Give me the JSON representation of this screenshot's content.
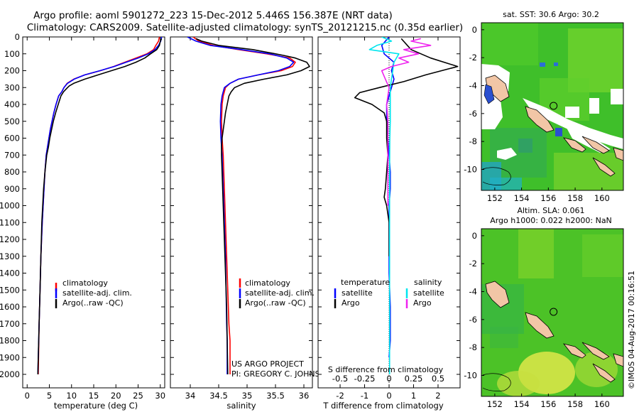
{
  "header": {
    "line1": "Argo profile: aoml 5901272_223 15-Dec-2012 5.446S 156.387E (NRT data)",
    "line2": "Climatology: CARS2009. Satellite-adjusted climatology: synTS_20121215.nc (0.35d earlier)"
  },
  "credit": {
    "project": "US ARGO PROJECT",
    "pi": "PI: GREGORY C. JOHNSON"
  },
  "timestamp": "©IMOS 04-Aug-2017 00:16:51",
  "colors": {
    "climatology": "#ff0000",
    "satellite": "#0000ff",
    "argo": "#000000",
    "sat_salinity": "#00e5ee",
    "argo_salinity": "#ee22ee",
    "land": "#f2c6a6"
  },
  "chart_data": [
    {
      "id": "temperature",
      "type": "line",
      "xlabel": "temperature (deg C)",
      "ylabel": "",
      "xlim": [
        -1,
        31
      ],
      "ylim": [
        2080,
        0
      ],
      "xticks": [
        0,
        5,
        10,
        15,
        20,
        25,
        30
      ],
      "xtick_labels": [
        "0",
        "5",
        "10",
        "15",
        "20",
        "25",
        "30"
      ],
      "yticks": [
        0,
        100,
        200,
        300,
        400,
        500,
        600,
        700,
        800,
        900,
        1000,
        1100,
        1200,
        1300,
        1400,
        1500,
        1600,
        1700,
        1800,
        1900,
        2000
      ],
      "ytick_labels": [
        "0",
        "100",
        "200",
        "300",
        "400",
        "500",
        "600",
        "700",
        "800",
        "900",
        "1000",
        "1100",
        "1200",
        "1300",
        "1400",
        "1500",
        "1600",
        "1700",
        "1800",
        "1900",
        "2000"
      ],
      "legend": [
        "climatology",
        "satellite-adj. clim.",
        "Argo(..raw -QC)"
      ],
      "series": [
        {
          "name": "climatology",
          "color": "#ff0000",
          "x": [
            29.8,
            29.6,
            29.0,
            28.5,
            27.0,
            24.5,
            22.0,
            19.5,
            16.5,
            13.0,
            10.5,
            9.0,
            8.3,
            7.8,
            7.1,
            6.5,
            6.0,
            5.6,
            5.2,
            4.9,
            4.6,
            4.3,
            4.0,
            3.8,
            3.4,
            3.1,
            2.9,
            2.7,
            2.5
          ],
          "y": [
            0,
            25,
            50,
            75,
            100,
            125,
            150,
            175,
            200,
            225,
            250,
            275,
            300,
            325,
            350,
            400,
            450,
            500,
            550,
            600,
            650,
            700,
            800,
            900,
            1100,
            1300,
            1500,
            1700,
            2000
          ]
        },
        {
          "name": "satellite-adj. clim.",
          "color": "#0000ff",
          "x": [
            30.3,
            30.1,
            29.6,
            28.8,
            27.3,
            25.0,
            22.3,
            19.6,
            16.4,
            13.0,
            10.6,
            9.1,
            8.3,
            7.8,
            7.1,
            6.5,
            6.0,
            5.6,
            5.2,
            4.9,
            4.6,
            4.3,
            4.0,
            3.8,
            3.4,
            3.1,
            2.9,
            2.7,
            2.4
          ],
          "y": [
            0,
            25,
            50,
            75,
            100,
            125,
            150,
            175,
            200,
            225,
            250,
            275,
            300,
            325,
            350,
            400,
            450,
            500,
            550,
            600,
            650,
            700,
            800,
            900,
            1100,
            1300,
            1500,
            1700,
            2000
          ]
        },
        {
          "name": "Argo(..raw -QC)",
          "color": "#000000",
          "x": [
            30.3,
            30.0,
            29.8,
            29.2,
            27.8,
            26.5,
            24.5,
            22.0,
            19.0,
            16.0,
            13.0,
            10.5,
            9.5,
            9.1,
            8.2,
            7.6,
            7.0,
            6.4,
            5.9,
            5.5,
            5.1,
            4.8,
            4.4,
            4.0,
            3.7,
            3.3,
            3.1,
            2.9,
            2.7,
            2.4
          ],
          "y": [
            10,
            25,
            50,
            75,
            100,
            125,
            150,
            175,
            200,
            225,
            250,
            275,
            290,
            300,
            325,
            350,
            400,
            450,
            500,
            550,
            600,
            650,
            700,
            800,
            900,
            1100,
            1300,
            1500,
            1700,
            2000
          ]
        }
      ]
    },
    {
      "id": "salinity",
      "type": "line",
      "xlabel": "salinity",
      "ylabel": "",
      "xlim": [
        33.65,
        36.15
      ],
      "ylim": [
        2080,
        0
      ],
      "xticks": [
        34,
        34.5,
        35,
        35.5,
        36
      ],
      "xtick_labels": [
        "34",
        "34.5",
        "35",
        "35.5",
        "36"
      ],
      "legend": [
        "climatology",
        "satellite-adj. clim.",
        "Argo(..raw -QC)"
      ],
      "series": [
        {
          "name": "climatology",
          "color": "#ff0000",
          "x": [
            34.05,
            34.15,
            34.4,
            34.85,
            35.35,
            35.75,
            35.85,
            35.8,
            35.6,
            35.2,
            34.85,
            34.7,
            34.62,
            34.58,
            34.56,
            34.55,
            34.56,
            34.58,
            34.6,
            34.62,
            34.64,
            34.66,
            34.68,
            34.7,
            34.7
          ],
          "y": [
            0,
            25,
            50,
            75,
            100,
            125,
            150,
            175,
            200,
            225,
            250,
            275,
            300,
            350,
            400,
            500,
            600,
            700,
            900,
            1100,
            1300,
            1500,
            1700,
            1800,
            2000
          ]
        },
        {
          "name": "satellite-adj. clim.",
          "color": "#0000ff",
          "x": [
            33.95,
            34.1,
            34.35,
            34.9,
            35.4,
            35.7,
            35.82,
            35.75,
            35.55,
            35.2,
            34.85,
            34.7,
            34.6,
            34.56,
            34.54,
            34.53,
            34.54,
            34.56,
            34.58,
            34.6,
            34.62,
            34.63,
            34.64,
            34.65,
            34.65
          ],
          "y": [
            0,
            25,
            50,
            75,
            100,
            125,
            150,
            175,
            200,
            225,
            250,
            275,
            300,
            350,
            400,
            500,
            600,
            700,
            900,
            1100,
            1300,
            1500,
            1700,
            1800,
            2000
          ]
        },
        {
          "name": "Argo(..raw -QC)",
          "color": "#000000",
          "x": [
            34.1,
            34.2,
            34.5,
            35.1,
            35.5,
            35.65,
            35.85,
            36.05,
            36.1,
            35.95,
            35.7,
            35.3,
            34.95,
            34.78,
            34.72,
            34.68,
            34.65,
            34.62,
            34.6,
            34.58,
            34.56,
            34.55,
            34.55,
            34.56,
            34.58,
            34.6,
            34.62,
            34.64,
            34.66
          ],
          "y": [
            10,
            25,
            50,
            75,
            100,
            110,
            125,
            150,
            175,
            200,
            225,
            250,
            275,
            300,
            325,
            350,
            400,
            450,
            500,
            550,
            600,
            650,
            700,
            800,
            1000,
            1200,
            1400,
            1600,
            2000
          ]
        }
      ]
    },
    {
      "id": "difference",
      "type": "line",
      "xlabel": "T difference from climatology",
      "xlabel2": "S difference from climatology",
      "xlim": [
        -2.9,
        2.9
      ],
      "ylim": [
        2080,
        0
      ],
      "xticks": [
        -2,
        -1,
        0,
        1,
        2
      ],
      "xtick_labels": [
        "-2",
        "-1",
        "0",
        "1",
        "2"
      ],
      "xticks2": [
        -2,
        -1,
        0,
        1,
        2
      ],
      "xtick_labels2": [
        "-0.5",
        "-0.25",
        "0",
        "0.25",
        "0.5"
      ],
      "legend_temperature": "temperature",
      "legend_salinity": "salinity",
      "legend": [
        "satellite",
        "Argo",
        "satellite",
        "Argo"
      ],
      "series": [
        {
          "name": "temperature satellite",
          "color": "#0000ff",
          "x": [
            0.0,
            -0.3,
            -0.2,
            0.2,
            0.1,
            0.2,
            0.1,
            0.0,
            -0.1,
            -0.1,
            -0.05,
            0.0,
            0.05,
            0.05,
            0.0,
            0.0,
            0.0,
            0.05,
            0.05,
            0.0
          ],
          "y": [
            0,
            50,
            100,
            150,
            200,
            250,
            300,
            350,
            400,
            500,
            600,
            700,
            800,
            900,
            1000,
            1200,
            1400,
            1600,
            1800,
            1900
          ]
        },
        {
          "name": "temperature Argo",
          "color": "#000000",
          "x": [
            0.5,
            0.9,
            1.7,
            2.8,
            1.5,
            0.6,
            -0.4,
            -1.2,
            -1.4,
            -0.7,
            -0.2,
            -0.1,
            -0.1,
            -0.05,
            -0.1,
            -0.15,
            -0.2,
            -0.1,
            -0.05,
            0.0,
            0.0
          ],
          "y": [
            10,
            75,
            125,
            175,
            225,
            265,
            300,
            330,
            360,
            400,
            450,
            500,
            600,
            700,
            800,
            900,
            950,
            1000,
            1050,
            1100,
            1300
          ]
        },
        {
          "name": "salinity satellite",
          "color": "#00e5ee",
          "x": [
            -0.3,
            0.1,
            -0.5,
            -0.8,
            0.4,
            0.2,
            0.15,
            0.1,
            0.05,
            0.05,
            0.05,
            0.03,
            0.02,
            0.02,
            0.02,
            0.02,
            0.02,
            0.02,
            0.02,
            0.02
          ],
          "y": [
            0,
            25,
            50,
            75,
            100,
            150,
            200,
            250,
            300,
            400,
            500,
            600,
            800,
            1000,
            1200,
            1400,
            1600,
            1800,
            1900,
            2000
          ]
        },
        {
          "name": "salinity Argo",
          "color": "#ee22ee",
          "x": [
            1.3,
            0.9,
            1.7,
            0.6,
            1.2,
            0.4,
            0.8,
            0.1,
            -0.3,
            -0.15,
            0.0,
            -0.1,
            -0.05,
            -0.05,
            -0.05,
            -0.05,
            -0.05
          ],
          "y": [
            10,
            25,
            50,
            75,
            100,
            125,
            150,
            175,
            200,
            250,
            300,
            400,
            500,
            600,
            800,
            900,
            1000
          ]
        }
      ]
    }
  ],
  "maps": [
    {
      "id": "sst-map",
      "title": "sat. SST: 30.6 Argo: 30.2",
      "xticks": [
        152,
        154,
        156,
        158,
        160
      ],
      "xtick_labels": [
        "152",
        "154",
        "156",
        "158",
        "160"
      ],
      "yticks": [
        0,
        -2,
        -4,
        -6,
        -8,
        -10
      ],
      "ytick_labels": [
        "0",
        "-2",
        "-4",
        "-6",
        "-8",
        "-10"
      ],
      "xlim": [
        151.0,
        161.6
      ],
      "ylim": [
        -11.5,
        0.5
      ],
      "argo_lon": 156.387,
      "argo_lat": -5.446
    },
    {
      "id": "sla-map",
      "title1": "Altim. SLA: 0.061",
      "title2": "Argo h1000: 0.022 h2000: NaN",
      "xticks": [
        152,
        154,
        156,
        158,
        160
      ],
      "xtick_labels": [
        "152",
        "154",
        "156",
        "158",
        "160"
      ],
      "yticks": [
        0,
        -2,
        -4,
        -6,
        -8,
        -10
      ],
      "ytick_labels": [
        "0",
        "-2",
        "-4",
        "-6",
        "-8",
        "-10"
      ],
      "xlim": [
        151.0,
        161.6
      ],
      "ylim": [
        -11.5,
        0.5
      ],
      "argo_lon": 156.387,
      "argo_lat": -5.446
    }
  ]
}
